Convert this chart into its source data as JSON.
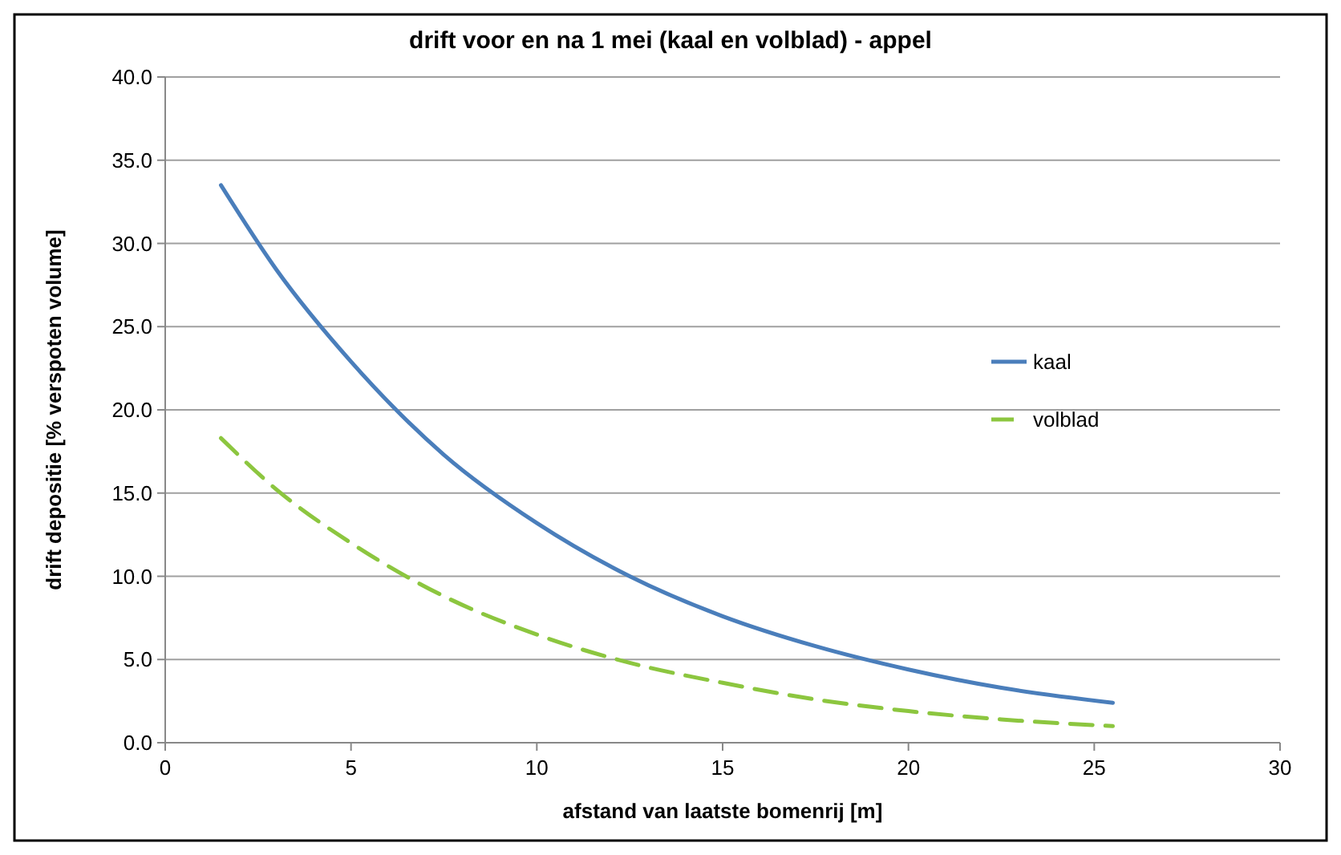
{
  "chart_data": {
    "type": "line",
    "title": "drift voor en na 1 mei (kaal en volblad) - appel",
    "xlabel": "afstand van laatste bomenrij [m]",
    "ylabel": "drift depositie [% verspoten volume]",
    "x": [
      1.5,
      3,
      5,
      7.5,
      10,
      12.5,
      15,
      17.5,
      20,
      22.5,
      25.5
    ],
    "series": [
      {
        "name": "kaal",
        "color": "#4a7ebb",
        "line_style": "solid",
        "values": [
          33.5,
          28.4,
          22.9,
          17.3,
          13.2,
          10.0,
          7.6,
          5.8,
          4.4,
          3.3,
          2.4
        ]
      },
      {
        "name": "volblad",
        "color": "#8cc63f",
        "line_style": "dashed",
        "values": [
          18.3,
          15.2,
          12.0,
          8.8,
          6.5,
          4.8,
          3.6,
          2.6,
          1.9,
          1.4,
          1.0
        ]
      }
    ],
    "xlim": [
      0,
      30
    ],
    "xticks": [
      0,
      5,
      10,
      15,
      20,
      25,
      30
    ],
    "ylim": [
      0,
      40
    ],
    "yticks": [
      {
        "value": 0,
        "label": "0.0"
      },
      {
        "value": 5,
        "label": "5.0"
      },
      {
        "value": 10,
        "label": "10.0"
      },
      {
        "value": 15,
        "label": "15.0"
      },
      {
        "value": 20,
        "label": "20.0"
      },
      {
        "value": 25,
        "label": "25.0"
      },
      {
        "value": 30,
        "label": "30.0"
      },
      {
        "value": 35,
        "label": "35.0"
      },
      {
        "value": 40,
        "label": "40.0"
      }
    ],
    "grid": "y",
    "legend": "right",
    "marker": "none"
  }
}
